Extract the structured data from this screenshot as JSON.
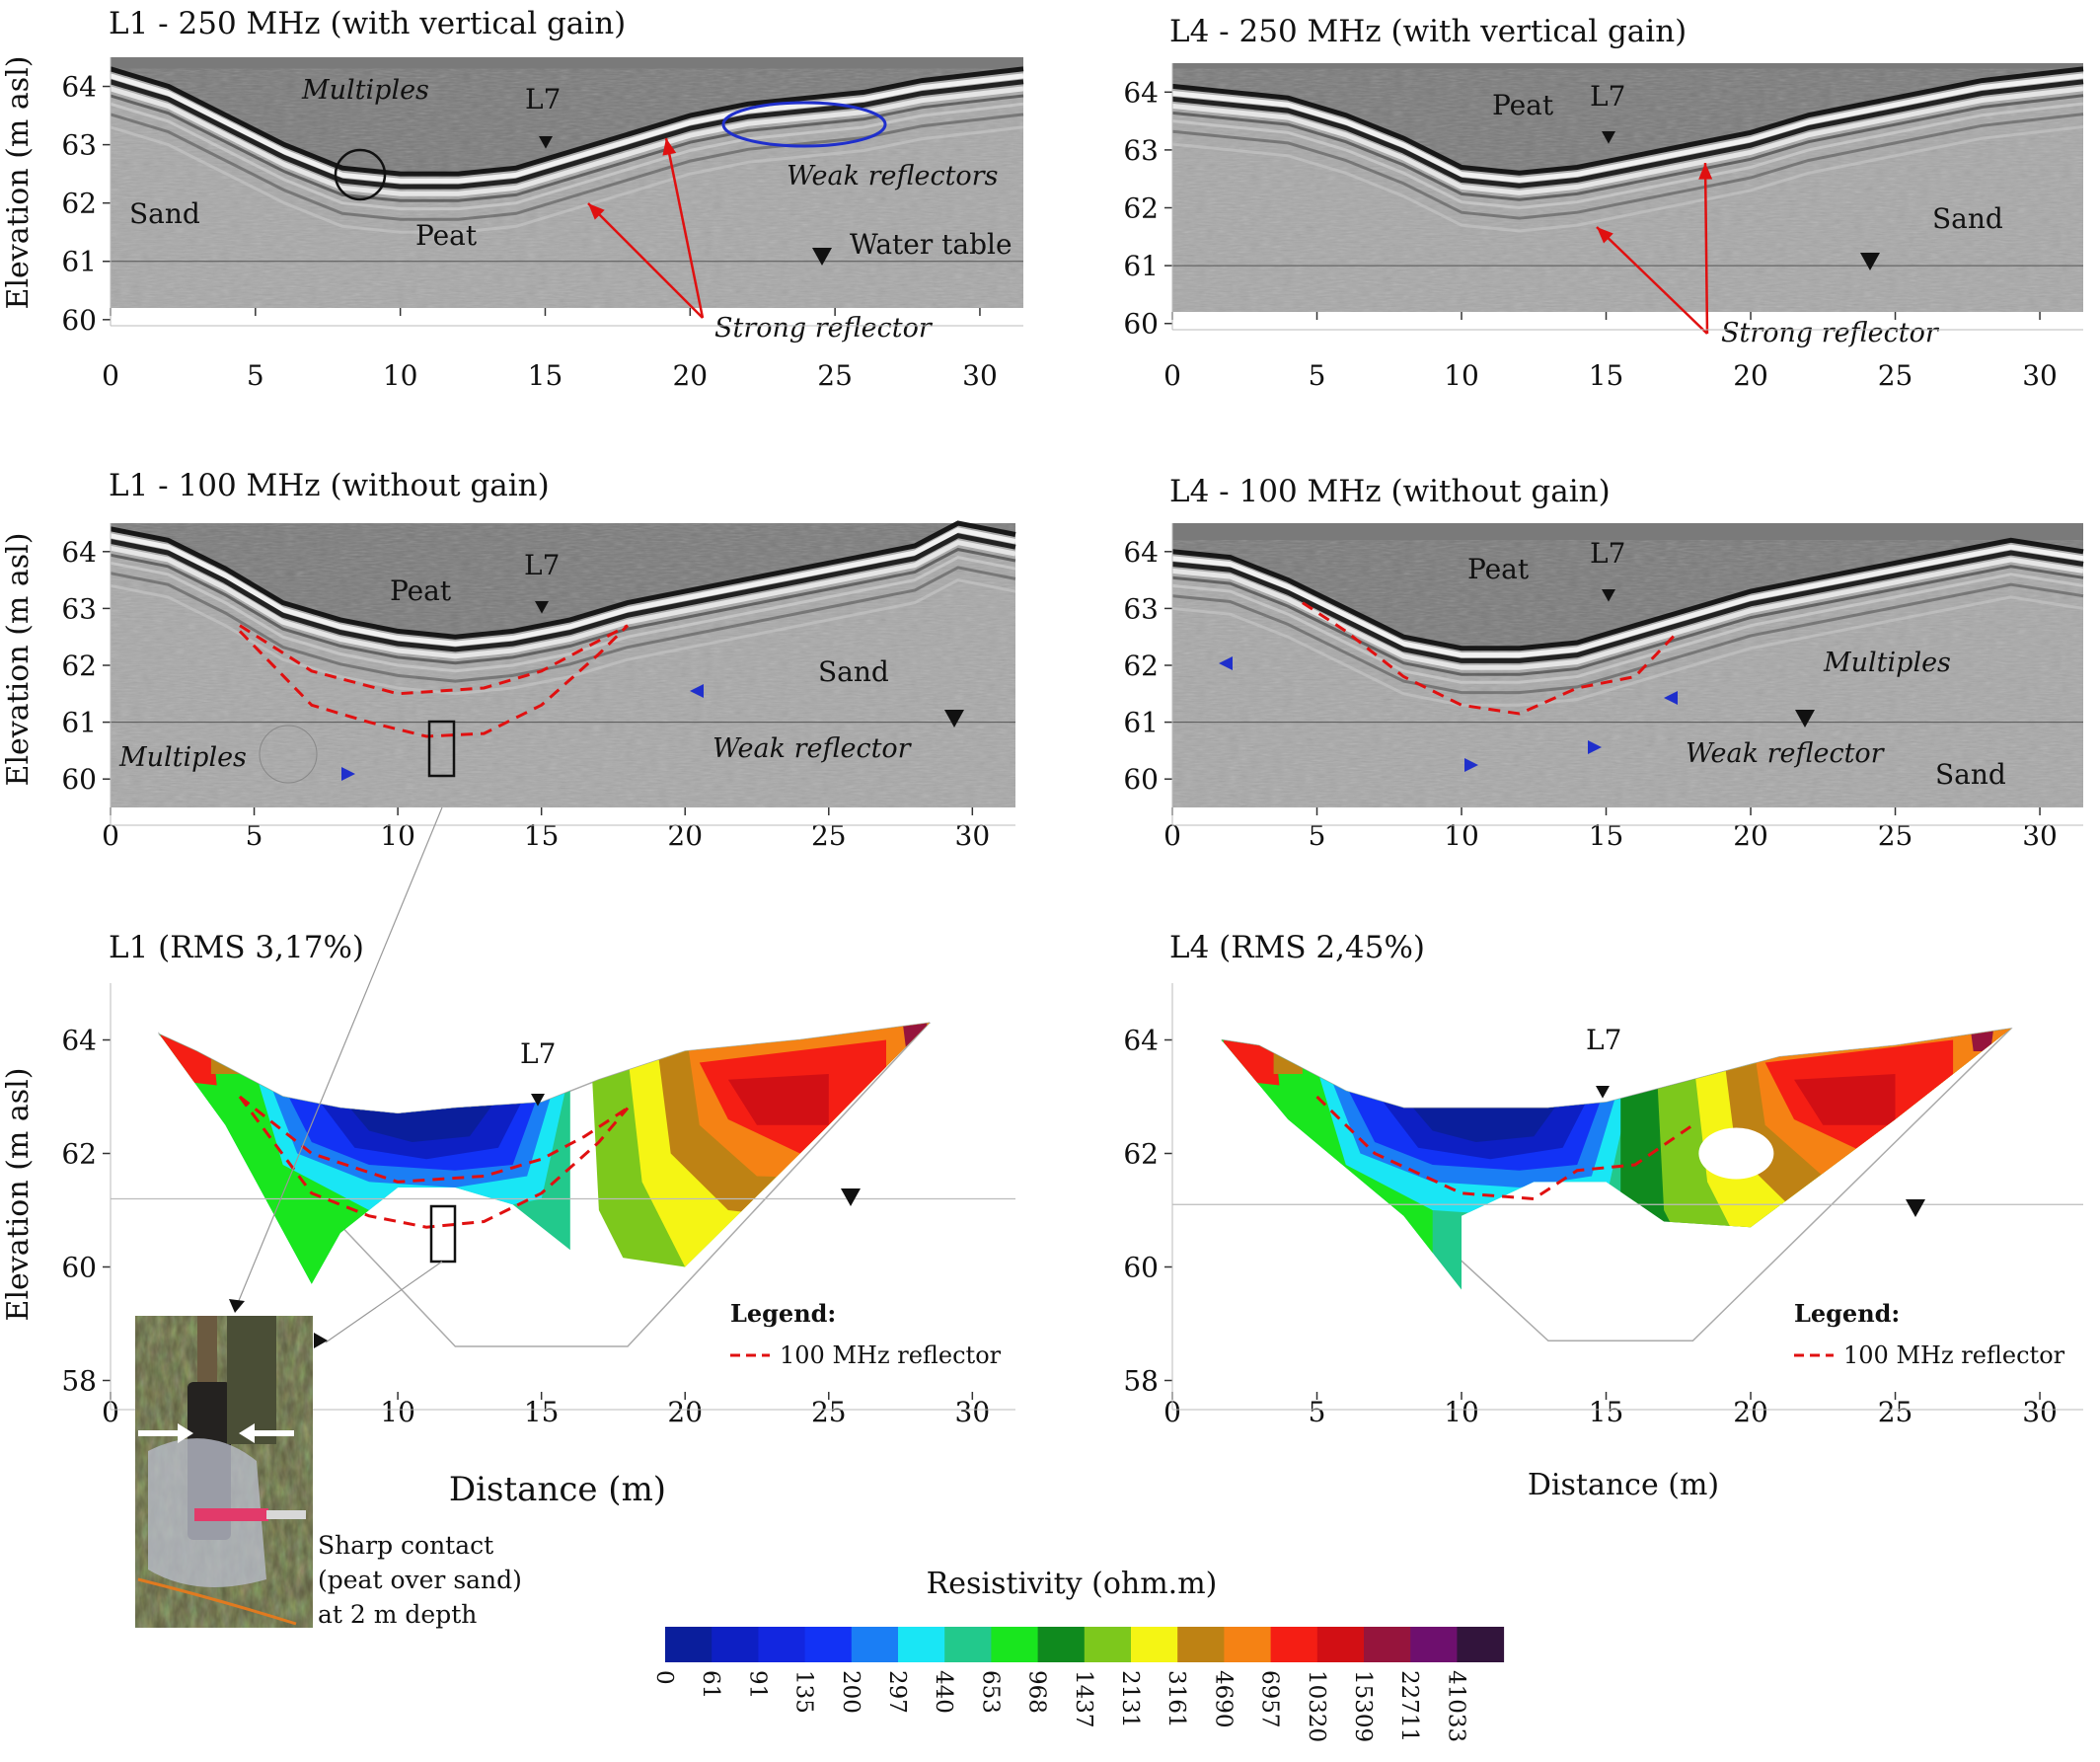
{
  "chart_data": [
    {
      "id": "p1",
      "type": "heatmap",
      "subtype": "gpr-radargram",
      "title": "L1 - 250 MHz (with vertical gain)",
      "xlabel": "",
      "ylabel": "Elevation (m asl)",
      "xlim": [
        0,
        31.5
      ],
      "ylim": [
        60.2,
        64.5
      ],
      "xticks": [
        "0",
        "5",
        "10",
        "15",
        "20",
        "25",
        "30"
      ],
      "yticks": [
        "60",
        "61",
        "62",
        "63",
        "64"
      ],
      "surface": [
        [
          0,
          64.3
        ],
        [
          2,
          64.0
        ],
        [
          4,
          63.5
        ],
        [
          6,
          63.0
        ],
        [
          8,
          62.6
        ],
        [
          10,
          62.5
        ],
        [
          12,
          62.5
        ],
        [
          14,
          62.6
        ],
        [
          16,
          62.9
        ],
        [
          18,
          63.2
        ],
        [
          20,
          63.5
        ],
        [
          22,
          63.7
        ],
        [
          24,
          63.8
        ],
        [
          26,
          63.9
        ],
        [
          28,
          64.1
        ],
        [
          31.5,
          64.3
        ]
      ],
      "water_table": 61.0,
      "annotations": {
        "sand": "Sand",
        "peat": "Peat",
        "multiples": "Multiples",
        "l7": "L7",
        "weak": "Weak reflectors",
        "water": "Water table",
        "strong": "Strong reflector"
      },
      "colors": {
        "annotation_blue": "#1f2fcc",
        "annotation_red": "#e01010"
      }
    },
    {
      "id": "p2",
      "type": "heatmap",
      "subtype": "gpr-radargram",
      "title": "L4 - 250 MHz (with vertical gain)",
      "xlabel": "",
      "ylabel": "",
      "xlim": [
        0,
        31.5
      ],
      "ylim": [
        60.2,
        64.5
      ],
      "xticks": [
        "0",
        "5",
        "10",
        "15",
        "20",
        "25",
        "30"
      ],
      "yticks": [
        "60",
        "61",
        "62",
        "63",
        "64"
      ],
      "surface": [
        [
          0,
          64.1
        ],
        [
          2,
          64.0
        ],
        [
          4,
          63.9
        ],
        [
          6,
          63.6
        ],
        [
          8,
          63.2
        ],
        [
          10,
          62.7
        ],
        [
          12,
          62.6
        ],
        [
          14,
          62.7
        ],
        [
          16,
          62.9
        ],
        [
          18,
          63.1
        ],
        [
          20,
          63.3
        ],
        [
          22,
          63.6
        ],
        [
          24,
          63.8
        ],
        [
          26,
          64.0
        ],
        [
          28,
          64.2
        ],
        [
          31.5,
          64.4
        ]
      ],
      "water_table": 61.0,
      "annotations": {
        "peat": "Peat",
        "l7": "L7",
        "sand": "Sand",
        "strong": "Strong reflector"
      }
    },
    {
      "id": "p3",
      "type": "heatmap",
      "subtype": "gpr-radargram",
      "title": "L1 - 100 MHz (without gain)",
      "xlabel": "",
      "ylabel": "Elevation (m asl)",
      "xlim": [
        0,
        31.5
      ],
      "ylim": [
        59.5,
        64.5
      ],
      "xticks": [
        "0",
        "5",
        "10",
        "15",
        "20",
        "25",
        "30"
      ],
      "yticks": [
        "60",
        "61",
        "62",
        "63",
        "64"
      ],
      "surface": [
        [
          0,
          64.4
        ],
        [
          2,
          64.2
        ],
        [
          4,
          63.7
        ],
        [
          6,
          63.1
        ],
        [
          8,
          62.8
        ],
        [
          10,
          62.6
        ],
        [
          12,
          62.5
        ],
        [
          14,
          62.6
        ],
        [
          16,
          62.8
        ],
        [
          18,
          63.1
        ],
        [
          20,
          63.3
        ],
        [
          22,
          63.5
        ],
        [
          24,
          63.7
        ],
        [
          26,
          63.9
        ],
        [
          28,
          64.1
        ],
        [
          29.5,
          64.5
        ],
        [
          31.5,
          64.3
        ]
      ],
      "reflector_upper": [
        [
          4.5,
          62.7
        ],
        [
          7,
          61.9
        ],
        [
          10,
          61.5
        ],
        [
          13,
          61.6
        ],
        [
          15,
          61.9
        ],
        [
          16.5,
          62.3
        ],
        [
          18,
          62.7
        ]
      ],
      "reflector_lower": [
        [
          4.5,
          62.6
        ],
        [
          7,
          61.3
        ],
        [
          9,
          61.0
        ],
        [
          11,
          60.75
        ],
        [
          13,
          60.8
        ],
        [
          15,
          61.3
        ],
        [
          17,
          62.2
        ],
        [
          18,
          62.7
        ]
      ],
      "water_table": 61.0,
      "annotations": {
        "peat": "Peat",
        "l7": "L7",
        "sand": "Sand",
        "multiples": "Multiples",
        "weak": "Weak reflector"
      }
    },
    {
      "id": "p4",
      "type": "heatmap",
      "subtype": "gpr-radargram",
      "title": "L4 - 100 MHz (without gain)",
      "xlabel": "",
      "ylabel": "",
      "xlim": [
        0,
        31.5
      ],
      "ylim": [
        59.5,
        64.5
      ],
      "xticks": [
        "0",
        "5",
        "10",
        "15",
        "20",
        "25",
        "30"
      ],
      "yticks": [
        "60",
        "61",
        "62",
        "63",
        "64"
      ],
      "surface": [
        [
          0,
          64.0
        ],
        [
          2,
          63.9
        ],
        [
          4,
          63.5
        ],
        [
          6,
          63.0
        ],
        [
          8,
          62.5
        ],
        [
          10,
          62.3
        ],
        [
          12,
          62.3
        ],
        [
          14,
          62.4
        ],
        [
          16,
          62.7
        ],
        [
          18,
          63.0
        ],
        [
          20,
          63.3
        ],
        [
          22,
          63.5
        ],
        [
          24,
          63.7
        ],
        [
          26,
          63.9
        ],
        [
          29,
          64.2
        ],
        [
          31.5,
          64.0
        ]
      ],
      "reflector": [
        [
          4.5,
          63.1
        ],
        [
          6,
          62.6
        ],
        [
          8,
          61.8
        ],
        [
          10,
          61.3
        ],
        [
          12,
          61.15
        ],
        [
          14,
          61.6
        ],
        [
          16,
          61.8
        ],
        [
          17.5,
          62.6
        ]
      ],
      "water_table": 61.0,
      "annotations": {
        "peat": "Peat",
        "l7": "L7",
        "multiples": "Multiples",
        "weak": "Weak reflector",
        "sand": "Sand"
      }
    },
    {
      "id": "p5",
      "type": "heatmap",
      "subtype": "ert-resistivity-section",
      "title": "L1 (RMS 3,17%)",
      "xlabel": "Distance (m)",
      "ylabel": "Elevation (m asl)",
      "xlim": [
        0,
        31.5
      ],
      "ylim": [
        57.8,
        65.0
      ],
      "xticks": [
        "0",
        "5",
        "10",
        "15",
        "20",
        "25",
        "30"
      ],
      "yticks": [
        "58",
        "60",
        "62",
        "64"
      ],
      "water_table": 61.2,
      "reflector_upper": [
        [
          4.5,
          63.0
        ],
        [
          7,
          62.0
        ],
        [
          10,
          61.5
        ],
        [
          13,
          61.6
        ],
        [
          15,
          61.9
        ],
        [
          16.5,
          62.3
        ],
        [
          18,
          62.8
        ]
      ],
      "reflector_lower": [
        [
          4.5,
          63.0
        ],
        [
          7,
          61.3
        ],
        [
          9,
          60.9
        ],
        [
          11,
          60.7
        ],
        [
          13,
          60.8
        ],
        [
          15,
          61.3
        ],
        [
          17,
          62.2
        ],
        [
          18,
          62.8
        ]
      ],
      "annotations": {
        "l7": "L7"
      },
      "legend_title": "Legend:",
      "legend_item": "100 MHz reflector"
    },
    {
      "id": "p6",
      "type": "heatmap",
      "subtype": "ert-resistivity-section",
      "title": "L4 (RMS 2,45%)",
      "xlabel": "Distance (m)",
      "ylabel": "",
      "xlim": [
        0,
        31.5
      ],
      "ylim": [
        57.8,
        65.0
      ],
      "xticks": [
        "0",
        "5",
        "10",
        "15",
        "20",
        "25",
        "30"
      ],
      "yticks": [
        "58",
        "60",
        "62",
        "64"
      ],
      "water_table": 61.1,
      "reflector": [
        [
          5,
          63.0
        ],
        [
          7,
          62.0
        ],
        [
          10,
          61.3
        ],
        [
          12.5,
          61.2
        ],
        [
          14,
          61.7
        ],
        [
          16,
          61.8
        ],
        [
          18,
          62.5
        ]
      ],
      "annotations": {
        "l7": "L7"
      },
      "legend_title": "Legend:",
      "legend_item": "100 MHz reflector"
    }
  ],
  "colorbar": {
    "title": "Resistivity (ohm.m)",
    "labels": [
      "0",
      "61",
      "91",
      "135",
      "200",
      "297",
      "440",
      "653",
      "968",
      "1437",
      "2131",
      "3161",
      "4690",
      "6957",
      "10320",
      "15309",
      "22711",
      "41033"
    ],
    "colors": [
      "#0a1e9c",
      "#0d1fc4",
      "#1226e0",
      "#1232f5",
      "#1a7ef5",
      "#19e6f5",
      "#22c98c",
      "#19e61e",
      "#0f8a1e",
      "#7dc81c",
      "#f5f514",
      "#be8214",
      "#f58214",
      "#f51e14",
      "#d20f14",
      "#96143c",
      "#6e0f6e",
      "#32143c"
    ]
  },
  "photo_caption": [
    "Sharp contact",
    "(peat over sand)",
    "at 2 m depth"
  ]
}
